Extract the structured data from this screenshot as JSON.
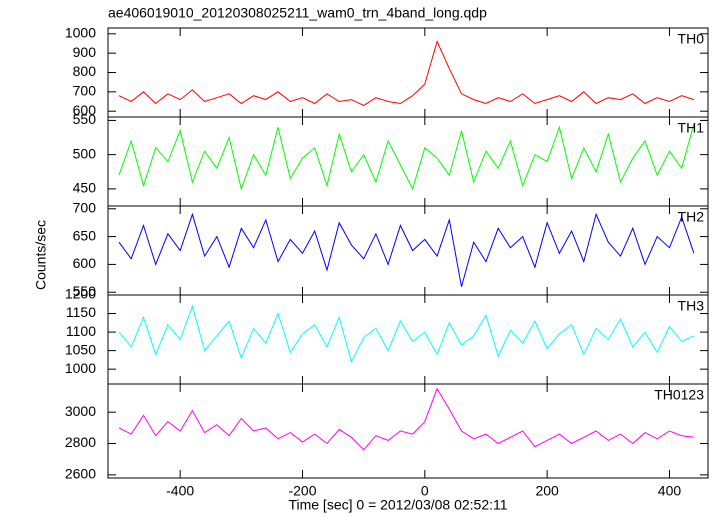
{
  "title": "ae406019010_20120308025211_wam0_trn_4band_long.qdp",
  "xlabel": "Time [sec] 0 = 2012/03/08 02:52:11",
  "ylabel": "Counts/sec",
  "xlim": [
    -518,
    463
  ],
  "xticks": [
    -400,
    -200,
    0,
    200,
    400
  ],
  "x": [
    -500,
    -480,
    -460,
    -440,
    -420,
    -400,
    -380,
    -360,
    -340,
    -320,
    -300,
    -280,
    -260,
    -240,
    -220,
    -200,
    -180,
    -160,
    -140,
    -120,
    -100,
    -80,
    -60,
    -40,
    -20,
    0,
    20,
    40,
    60,
    80,
    100,
    120,
    140,
    160,
    180,
    200,
    220,
    240,
    260,
    280,
    300,
    320,
    340,
    360,
    380,
    400,
    420,
    440
  ],
  "chart_data": [
    {
      "type": "line",
      "ylim": [
        570,
        1030
      ],
      "yticks": [
        600,
        700,
        800,
        900,
        1000
      ],
      "series": [
        {
          "name": "TH0",
          "color": "#ff0000",
          "values": [
            680,
            650,
            700,
            640,
            690,
            660,
            710,
            650,
            670,
            690,
            640,
            680,
            660,
            700,
            650,
            670,
            640,
            690,
            650,
            660,
            630,
            670,
            650,
            640,
            680,
            740,
            960,
            820,
            690,
            660,
            640,
            670,
            650,
            690,
            640,
            660,
            680,
            650,
            700,
            640,
            670,
            660,
            690,
            640,
            670,
            650,
            680,
            660
          ]
        }
      ]
    },
    {
      "type": "line",
      "ylim": [
        425,
        555
      ],
      "yticks": [
        450,
        500,
        550
      ],
      "series": [
        {
          "name": "TH1",
          "color": "#00ff00",
          "values": [
            470,
            520,
            455,
            510,
            490,
            535,
            460,
            505,
            480,
            525,
            450,
            500,
            470,
            540,
            465,
            495,
            510,
            455,
            530,
            475,
            500,
            460,
            520,
            485,
            450,
            510,
            495,
            470,
            535,
            460,
            505,
            480,
            520,
            455,
            500,
            490,
            540,
            465,
            510,
            475,
            530,
            460,
            495,
            520,
            470,
            505,
            480,
            545
          ]
        }
      ]
    },
    {
      "type": "line",
      "ylim": [
        545,
        705
      ],
      "yticks": [
        550,
        600,
        650,
        700
      ],
      "series": [
        {
          "name": "TH2",
          "color": "#0000ff",
          "values": [
            640,
            610,
            670,
            600,
            655,
            625,
            690,
            615,
            650,
            595,
            665,
            630,
            680,
            605,
            645,
            620,
            660,
            590,
            675,
            635,
            610,
            655,
            600,
            670,
            625,
            645,
            615,
            680,
            560,
            640,
            605,
            665,
            630,
            650,
            595,
            675,
            620,
            660,
            605,
            690,
            640,
            615,
            665,
            600,
            650,
            630,
            685,
            620
          ]
        }
      ]
    },
    {
      "type": "line",
      "ylim": [
        960,
        1200
      ],
      "yticks": [
        1000,
        1050,
        1100,
        1150,
        1200
      ],
      "series": [
        {
          "name": "TH3",
          "color": "#00ffff",
          "values": [
            1100,
            1060,
            1140,
            1040,
            1120,
            1080,
            1170,
            1050,
            1090,
            1130,
            1030,
            1110,
            1070,
            1150,
            1045,
            1095,
            1120,
            1060,
            1140,
            1020,
            1085,
            1110,
            1050,
            1130,
            1075,
            1100,
            1040,
            1125,
            1065,
            1090,
            1145,
            1035,
            1105,
            1070,
            1130,
            1055,
            1095,
            1120,
            1040,
            1110,
            1080,
            1135,
            1060,
            1100,
            1045,
            1115,
            1075,
            1090
          ]
        }
      ]
    },
    {
      "type": "line",
      "ylim": [
        2580,
        3180
      ],
      "yticks": [
        2600,
        2800,
        3000
      ],
      "series": [
        {
          "name": "TH0123",
          "color": "#ff00ff",
          "values": [
            2900,
            2860,
            2980,
            2850,
            2940,
            2880,
            3010,
            2870,
            2920,
            2850,
            2960,
            2880,
            2900,
            2830,
            2870,
            2810,
            2860,
            2800,
            2890,
            2840,
            2760,
            2850,
            2820,
            2880,
            2860,
            2940,
            3150,
            3020,
            2880,
            2830,
            2860,
            2800,
            2840,
            2880,
            2780,
            2820,
            2860,
            2800,
            2840,
            2880,
            2820,
            2860,
            2800,
            2870,
            2830,
            2880,
            2850,
            2840
          ]
        }
      ]
    }
  ]
}
